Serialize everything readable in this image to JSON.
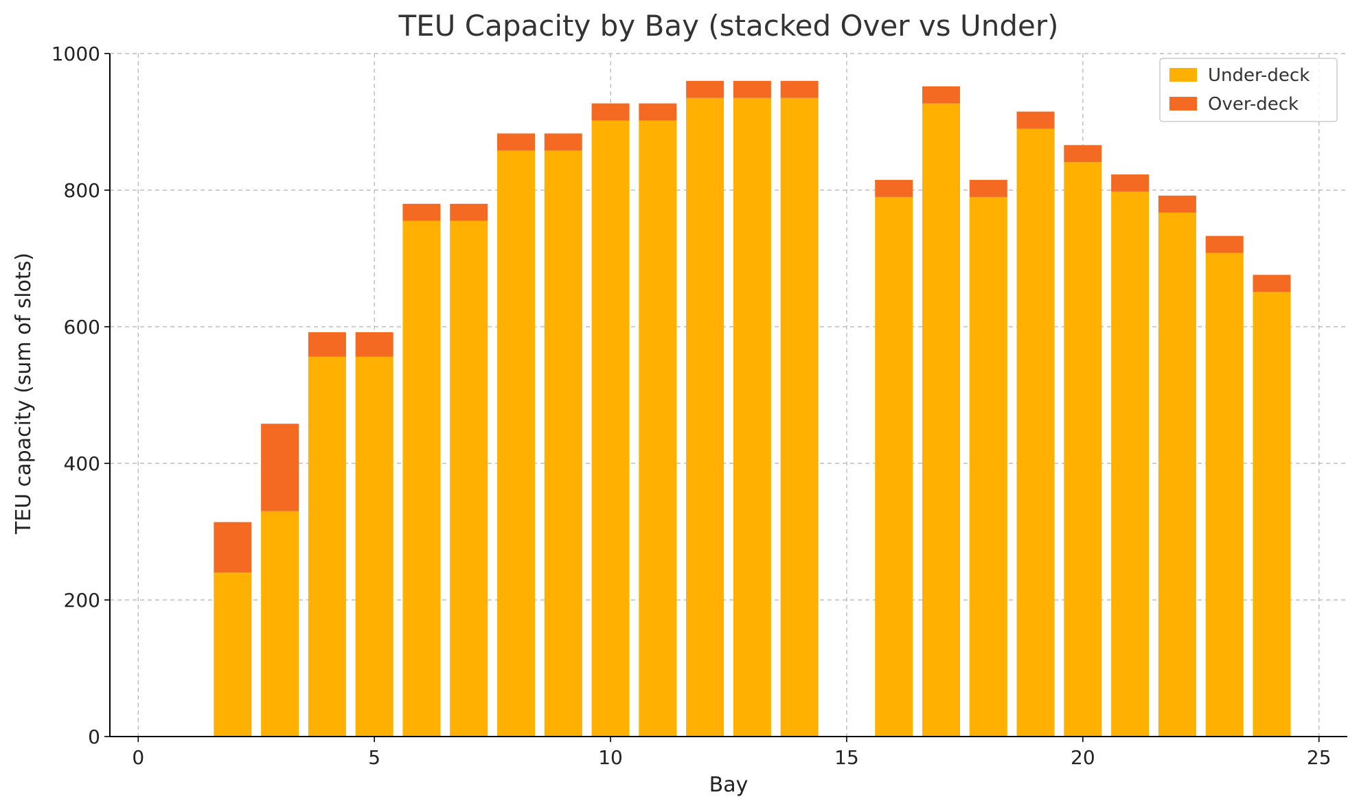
{
  "chart_data": {
    "type": "bar",
    "stacked": true,
    "title": "TEU Capacity by Bay (stacked Over vs Under)",
    "xlabel": "Bay",
    "ylabel": "TEU capacity (sum of slots)",
    "xlim": [
      -0.6,
      25.6
    ],
    "ylim": [
      0,
      1000
    ],
    "xticks": [
      0,
      5,
      10,
      15,
      20,
      25
    ],
    "yticks": [
      0,
      200,
      400,
      600,
      800,
      1000
    ],
    "grid": true,
    "legend_position": "top-right",
    "x": [
      2,
      3,
      4,
      5,
      6,
      7,
      8,
      9,
      10,
      11,
      12,
      13,
      14,
      16,
      17,
      18,
      19,
      20,
      21,
      22,
      23,
      24
    ],
    "series": [
      {
        "name": "Under-deck",
        "color": "#ffb000",
        "values": [
          240,
          330,
          556,
          556,
          755,
          755,
          858,
          858,
          902,
          902,
          935,
          935,
          935,
          790,
          927,
          790,
          890,
          841,
          798,
          767,
          708,
          651
        ]
      },
      {
        "name": "Over-deck",
        "color": "#f46a22",
        "values": [
          74,
          128,
          36,
          36,
          25,
          25,
          25,
          25,
          25,
          25,
          25,
          25,
          25,
          25,
          25,
          25,
          25,
          25,
          25,
          25,
          25,
          25
        ]
      }
    ]
  }
}
